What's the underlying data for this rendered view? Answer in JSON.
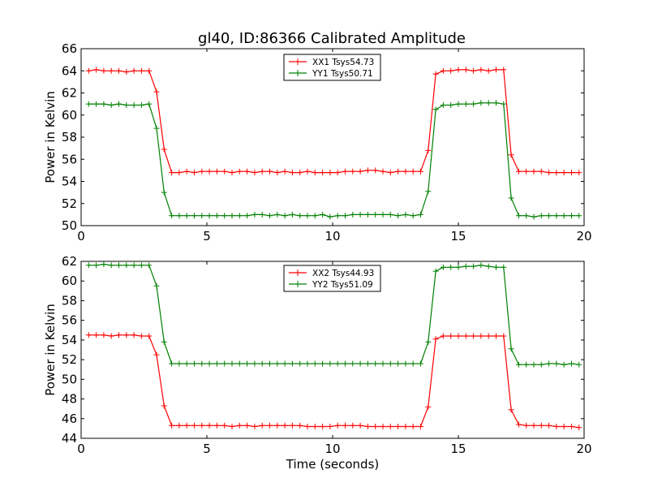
{
  "title": "gl40, ID:86366 Calibrated Amplitude",
  "chart_data": [
    {
      "type": "line",
      "ylabel": "Power in Kelvin",
      "xlabel": "",
      "xlim": [
        0,
        20
      ],
      "ylim": [
        50,
        66
      ],
      "xticks": [
        "0",
        "5",
        "10",
        "15",
        "20"
      ],
      "yticks": [
        "50",
        "52",
        "54",
        "56",
        "58",
        "60",
        "62",
        "64",
        "66"
      ],
      "legend_position": "top-center",
      "x": [
        0.3,
        0.6,
        0.9,
        1.2,
        1.5,
        1.8,
        2.1,
        2.4,
        2.7,
        3.0,
        3.3,
        3.6,
        3.9,
        4.2,
        4.5,
        4.8,
        5.1,
        5.4,
        5.7,
        6.0,
        6.3,
        6.6,
        6.9,
        7.2,
        7.5,
        7.8,
        8.1,
        8.4,
        8.7,
        9.0,
        9.3,
        9.6,
        9.9,
        10.2,
        10.5,
        10.8,
        11.1,
        11.4,
        11.7,
        12.0,
        12.3,
        12.6,
        12.9,
        13.2,
        13.5,
        13.8,
        14.1,
        14.4,
        14.7,
        15.0,
        15.3,
        15.6,
        15.9,
        16.2,
        16.5,
        16.8,
        17.1,
        17.4,
        17.7,
        18.0,
        18.3,
        18.6,
        18.9,
        19.2,
        19.5,
        19.8
      ],
      "series": [
        {
          "name": "XX1 Tsys54.73",
          "color": "#ff0000",
          "values": [
            64.0,
            64.1,
            64.0,
            64.0,
            64.0,
            63.9,
            64.0,
            64.0,
            64.0,
            62.1,
            56.9,
            54.8,
            54.8,
            54.9,
            54.8,
            54.9,
            54.9,
            54.9,
            54.9,
            54.8,
            54.9,
            54.9,
            54.8,
            54.9,
            54.9,
            54.8,
            54.9,
            54.8,
            54.8,
            54.9,
            54.8,
            54.8,
            54.8,
            54.8,
            54.9,
            54.9,
            54.9,
            55.0,
            55.0,
            54.9,
            54.8,
            54.9,
            54.9,
            54.9,
            54.9,
            56.8,
            63.7,
            64.0,
            64.0,
            64.1,
            64.1,
            64.0,
            64.1,
            64.0,
            64.1,
            64.1,
            56.4,
            54.9,
            54.9,
            54.9,
            54.9,
            54.8,
            54.8,
            54.8,
            54.8,
            54.8
          ]
        },
        {
          "name": "YY1 Tsys50.71",
          "color": "#008000",
          "values": [
            61.0,
            61.0,
            61.0,
            60.9,
            61.0,
            60.9,
            60.9,
            60.9,
            61.0,
            58.8,
            53.0,
            50.9,
            50.9,
            50.9,
            50.9,
            50.9,
            50.9,
            50.9,
            50.9,
            50.9,
            50.9,
            50.9,
            51.0,
            51.0,
            50.9,
            51.0,
            50.9,
            51.0,
            50.9,
            50.9,
            50.9,
            51.0,
            50.8,
            50.9,
            50.9,
            51.0,
            51.0,
            51.0,
            51.0,
            51.0,
            51.0,
            50.9,
            51.0,
            50.9,
            51.0,
            53.1,
            60.5,
            60.9,
            60.9,
            61.0,
            61.0,
            61.0,
            61.1,
            61.1,
            61.1,
            61.0,
            52.5,
            50.9,
            50.9,
            50.8,
            50.9,
            50.9,
            50.9,
            50.9,
            50.9,
            50.9
          ]
        }
      ]
    },
    {
      "type": "line",
      "ylabel": "Power in Kelvin",
      "xlabel": "Time (seconds)",
      "xlim": [
        0,
        20
      ],
      "ylim": [
        44,
        62
      ],
      "xticks": [
        "0",
        "5",
        "10",
        "15",
        "20"
      ],
      "yticks": [
        "44",
        "46",
        "48",
        "50",
        "52",
        "54",
        "56",
        "58",
        "60",
        "62"
      ],
      "legend_position": "top-center",
      "x": [
        0.3,
        0.6,
        0.9,
        1.2,
        1.5,
        1.8,
        2.1,
        2.4,
        2.7,
        3.0,
        3.3,
        3.6,
        3.9,
        4.2,
        4.5,
        4.8,
        5.1,
        5.4,
        5.7,
        6.0,
        6.3,
        6.6,
        6.9,
        7.2,
        7.5,
        7.8,
        8.1,
        8.4,
        8.7,
        9.0,
        9.3,
        9.6,
        9.9,
        10.2,
        10.5,
        10.8,
        11.1,
        11.4,
        11.7,
        12.0,
        12.3,
        12.6,
        12.9,
        13.2,
        13.5,
        13.8,
        14.1,
        14.4,
        14.7,
        15.0,
        15.3,
        15.6,
        15.9,
        16.2,
        16.5,
        16.8,
        17.1,
        17.4,
        17.7,
        18.0,
        18.3,
        18.6,
        18.9,
        19.2,
        19.5,
        19.8
      ],
      "series": [
        {
          "name": "XX2 Tsys44.93",
          "color": "#ff0000",
          "values": [
            54.5,
            54.5,
            54.5,
            54.4,
            54.5,
            54.5,
            54.5,
            54.4,
            54.4,
            52.5,
            47.3,
            45.3,
            45.3,
            45.3,
            45.3,
            45.3,
            45.3,
            45.3,
            45.3,
            45.2,
            45.3,
            45.3,
            45.2,
            45.3,
            45.3,
            45.3,
            45.3,
            45.3,
            45.3,
            45.2,
            45.2,
            45.2,
            45.2,
            45.3,
            45.3,
            45.3,
            45.3,
            45.2,
            45.2,
            45.2,
            45.2,
            45.2,
            45.2,
            45.2,
            45.2,
            47.2,
            54.1,
            54.4,
            54.4,
            54.4,
            54.4,
            54.4,
            54.4,
            54.4,
            54.4,
            54.4,
            46.9,
            45.4,
            45.3,
            45.3,
            45.3,
            45.3,
            45.2,
            45.2,
            45.2,
            45.1
          ]
        },
        {
          "name": "YY2 Tsys51.09",
          "color": "#008000",
          "values": [
            61.6,
            61.6,
            61.7,
            61.6,
            61.6,
            61.6,
            61.6,
            61.6,
            61.6,
            59.5,
            53.8,
            51.6,
            51.6,
            51.6,
            51.6,
            51.6,
            51.6,
            51.6,
            51.6,
            51.6,
            51.6,
            51.6,
            51.6,
            51.6,
            51.6,
            51.6,
            51.6,
            51.6,
            51.6,
            51.6,
            51.6,
            51.6,
            51.6,
            51.6,
            51.6,
            51.6,
            51.6,
            51.6,
            51.6,
            51.6,
            51.6,
            51.6,
            51.6,
            51.6,
            51.6,
            53.8,
            61.0,
            61.4,
            61.4,
            61.4,
            61.5,
            61.5,
            61.6,
            61.5,
            61.4,
            61.4,
            53.1,
            51.5,
            51.5,
            51.5,
            51.5,
            51.6,
            51.6,
            51.5,
            51.6,
            51.5
          ]
        }
      ]
    }
  ]
}
